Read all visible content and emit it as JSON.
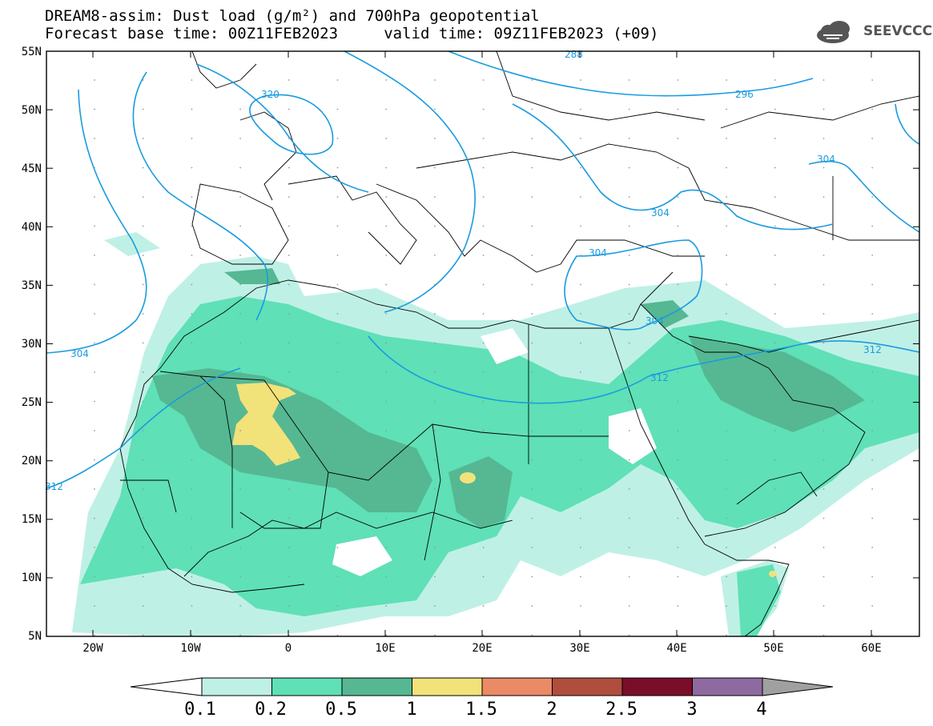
{
  "title": {
    "line1": "DREAM8-assim: Dust load (g/m²) and 700hPa geopotential",
    "line2": "Forecast base time: 00Z11FEB2023     valid time: 09Z11FEB2023 (+09)"
  },
  "logo": {
    "text": "SEEVCCC",
    "icon": "cloud-icon"
  },
  "axes": {
    "lat_labels": [
      "55N",
      "50N",
      "45N",
      "40N",
      "35N",
      "30N",
      "25N",
      "20N",
      "15N",
      "10N",
      "5N"
    ],
    "lon_labels": [
      "20W",
      "10W",
      "0",
      "10E",
      "20E",
      "30E",
      "40E",
      "50E",
      "60E"
    ]
  },
  "contours": {
    "color": "#1a9be0",
    "labels": [
      "320",
      "288",
      "296",
      "304",
      "304",
      "304",
      "304",
      "304",
      "312",
      "312",
      "312"
    ]
  },
  "colorbar": {
    "labels": [
      "0.1",
      "0.2",
      "0.5",
      "1",
      "1.5",
      "2",
      "2.5",
      "3",
      "4"
    ],
    "colors": [
      "#bff0e6",
      "#5fe0b6",
      "#55b892",
      "#f2e27a",
      "#ea8a66",
      "#b04e3e",
      "#7a0e2a",
      "#8e6aa0"
    ]
  }
}
